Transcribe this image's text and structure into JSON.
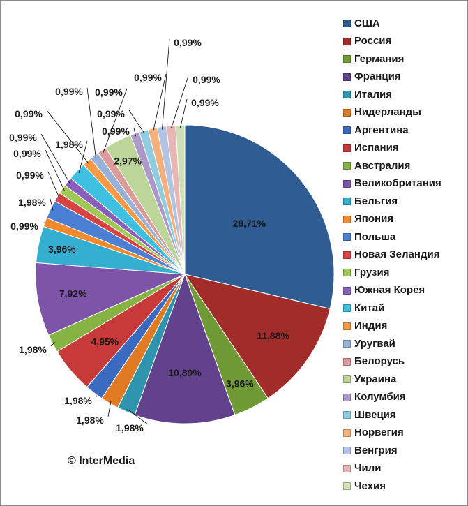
{
  "chart_data": {
    "type": "pie",
    "title": "",
    "start_angle_deg": 0,
    "direction": "clockwise",
    "legend_position": "right",
    "categories": [
      "США",
      "Россия",
      "Германия",
      "Франция",
      "Италия",
      "Нидерланды",
      "Аргентина",
      "Испания",
      "Австралия",
      "Великобритания",
      "Бельгия",
      "Япония",
      "Польша",
      "Новая Зеландия",
      "Грузия",
      "Южная Корея",
      "Китай",
      "Индия",
      "Уругвай",
      "Белорусь",
      "Украина",
      "Колумбия",
      "Швеция",
      "Норвегия",
      "Венгрия",
      "Чили",
      "Чехия"
    ],
    "values": [
      28.71,
      11.88,
      3.96,
      10.89,
      1.98,
      1.98,
      1.98,
      4.95,
      1.98,
      7.92,
      3.96,
      0.99,
      1.98,
      0.99,
      0.99,
      0.99,
      1.98,
      0.99,
      0.99,
      0.99,
      2.97,
      0.99,
      0.99,
      0.99,
      0.99,
      0.99,
      0.99
    ],
    "labels": [
      "28,71%",
      "11,88%",
      "3,96%",
      "10,89%",
      "1,98%",
      "1,98%",
      "1,98%",
      "4,95%",
      "1,98%",
      "7,92%",
      "3,96%",
      "0,99%",
      "1,98%",
      "0,99%",
      "0,99%",
      "0,99%",
      "1,98%",
      "0,99%",
      "0,99%",
      "0,99%",
      "2,97%",
      "0,99%",
      "0,99%",
      "0,99%",
      "0,99%",
      "0,99%",
      "0,99%"
    ],
    "colors": [
      "#2f5c93",
      "#a12c2a",
      "#6f9a35",
      "#62428d",
      "#2f95ae",
      "#e07b24",
      "#3b6bc1",
      "#c8393a",
      "#86b444",
      "#7d54a8",
      "#34afd0",
      "#f28a2d",
      "#4a7fd4",
      "#d84343",
      "#9fc855",
      "#8a5fbc",
      "#3ec1e0",
      "#f79942",
      "#97b1d9",
      "#dc9a9a",
      "#bcd598",
      "#ad99c9",
      "#8fcde0",
      "#f7b07a",
      "#b2c3e3",
      "#e7b5b4",
      "#cfe0b5"
    ]
  },
  "copyright": "© InterMedia"
}
